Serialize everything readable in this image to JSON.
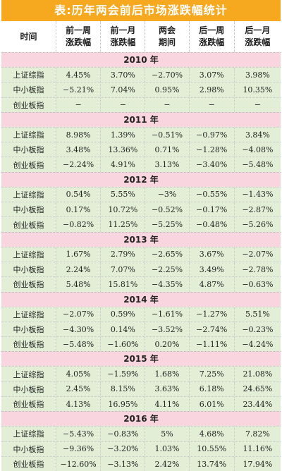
{
  "title": "表:历年两会前后市场涨跌幅统计",
  "columns": [
    "时间",
    "前一周\n涨跌幅",
    "前一月\n涨跌幅",
    "两会\n期间",
    "后一周\n涨跌幅",
    "后一月\n涨跌幅"
  ],
  "groups": [
    {
      "year": "2010 年",
      "rows": [
        [
          "上证综指",
          "4.45%",
          "3.70%",
          "−2.70%",
          "3.07%",
          "3.98%"
        ],
        [
          "中小板指",
          "−5.21%",
          "7.04%",
          "0.95%",
          "2.98%",
          "10.35%"
        ],
        [
          "创业板指",
          "−",
          "−",
          "−",
          "−",
          "−"
        ]
      ]
    },
    {
      "year": "2011 年",
      "rows": [
        [
          "上证综指",
          "8.98%",
          "1.39%",
          "−0.51%",
          "−0.97%",
          "3.84%"
        ],
        [
          "中小板指",
          "3.48%",
          "13.36%",
          "0.71%",
          "−1.28%",
          "−4.08%"
        ],
        [
          "创业板指",
          "−2.24%",
          "4.91%",
          "3.13%",
          "−3.40%",
          "−5.48%"
        ]
      ]
    },
    {
      "year": "2012 年",
      "rows": [
        [
          "上证综指",
          "0.54%",
          "5.55%",
          "−3%",
          "−0.55%",
          "−1.43%"
        ],
        [
          "中小板指",
          "0.17%",
          "10.72%",
          "−0.52%",
          "−0.17%",
          "−2.87%"
        ],
        [
          "创业板指",
          "−0.82%",
          "11.25%",
          "−5.25%",
          "−0.48%",
          "−5.26%"
        ]
      ]
    },
    {
      "year": "2013 年",
      "rows": [
        [
          "上证综指",
          "1.67%",
          "2.79%",
          "−2.65%",
          "3.67%",
          "−2.07%"
        ],
        [
          "中小板指",
          "2.24%",
          "7.07%",
          "−2.25%",
          "3.49%",
          "−2.78%"
        ],
        [
          "创业板指",
          "5.48%",
          "15.81%",
          "−4.35%",
          "4.87%",
          "−0.63%"
        ]
      ]
    },
    {
      "year": "2014 年",
      "rows": [
        [
          "上证综指",
          "−2.07%",
          "0.59%",
          "−1.61%",
          "−1.27%",
          "5.51%"
        ],
        [
          "中小板指",
          "−4.30%",
          "0.14%",
          "−3.52%",
          "−2.74%",
          "−0.23%"
        ],
        [
          "创业板指",
          "−5.48%",
          "−1.60%",
          "0.20%",
          "−1.11%",
          "−4.24%"
        ]
      ]
    },
    {
      "year": "2015 年",
      "rows": [
        [
          "上证综指",
          "4.05%",
          "−1.59%",
          "1.68%",
          "7.25%",
          "21.08%"
        ],
        [
          "中小板指",
          "2.45%",
          "8.15%",
          "3.63%",
          "6.18%",
          "24.65%"
        ],
        [
          "创业板指",
          "4.13%",
          "16.95%",
          "4.11%",
          "6.01%",
          "23.44%"
        ]
      ]
    },
    {
      "year": "2016 年",
      "rows": [
        [
          "上证综指",
          "−5.43%",
          "−0.83%",
          "5%",
          "4.68%",
          "7.82%"
        ],
        [
          "中小板指",
          "−9.36%",
          "−3.20%",
          "1.03%",
          "10.55%",
          "11.16%"
        ],
        [
          "创业板指",
          "−12.60%",
          "−3.13%",
          "2.42%",
          "13.74%",
          "17.94%"
        ]
      ]
    }
  ]
}
